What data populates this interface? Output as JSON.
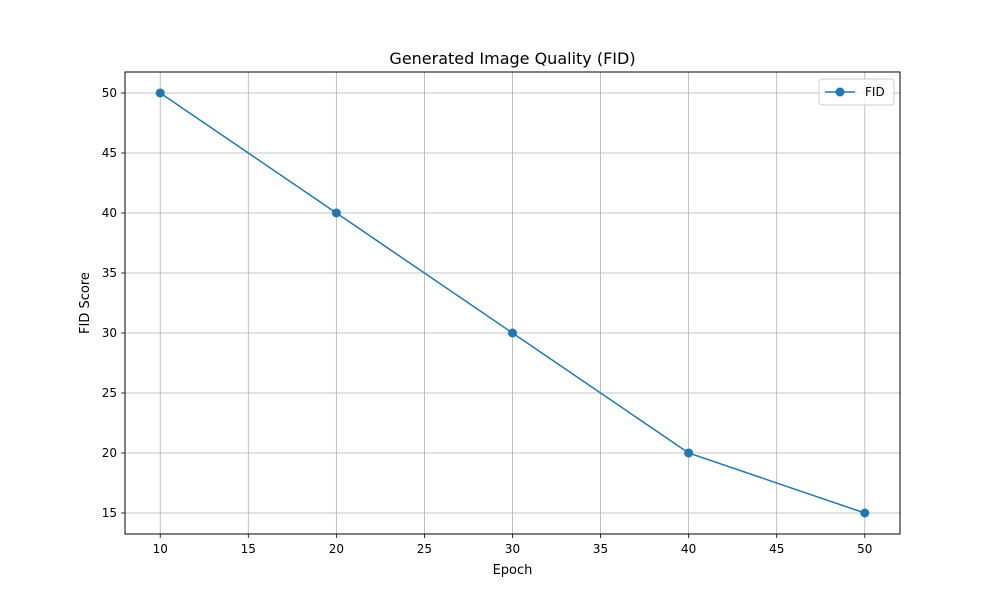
{
  "chart_data": {
    "type": "line",
    "title": "Generated Image Quality (FID)",
    "xlabel": "Epoch",
    "ylabel": "FID Score",
    "xlim": [
      8,
      52
    ],
    "ylim": [
      13.25,
      51.75
    ],
    "xticks": [
      10,
      15,
      20,
      25,
      30,
      35,
      40,
      45,
      50
    ],
    "yticks": [
      15,
      20,
      25,
      30,
      35,
      40,
      45,
      50
    ],
    "grid": true,
    "legend_position": "top-right",
    "series": [
      {
        "name": "FID",
        "color": "#1f77b4",
        "marker": "circle",
        "x": [
          10,
          20,
          30,
          40,
          50
        ],
        "y": [
          50,
          40,
          30,
          20,
          15
        ]
      }
    ]
  }
}
